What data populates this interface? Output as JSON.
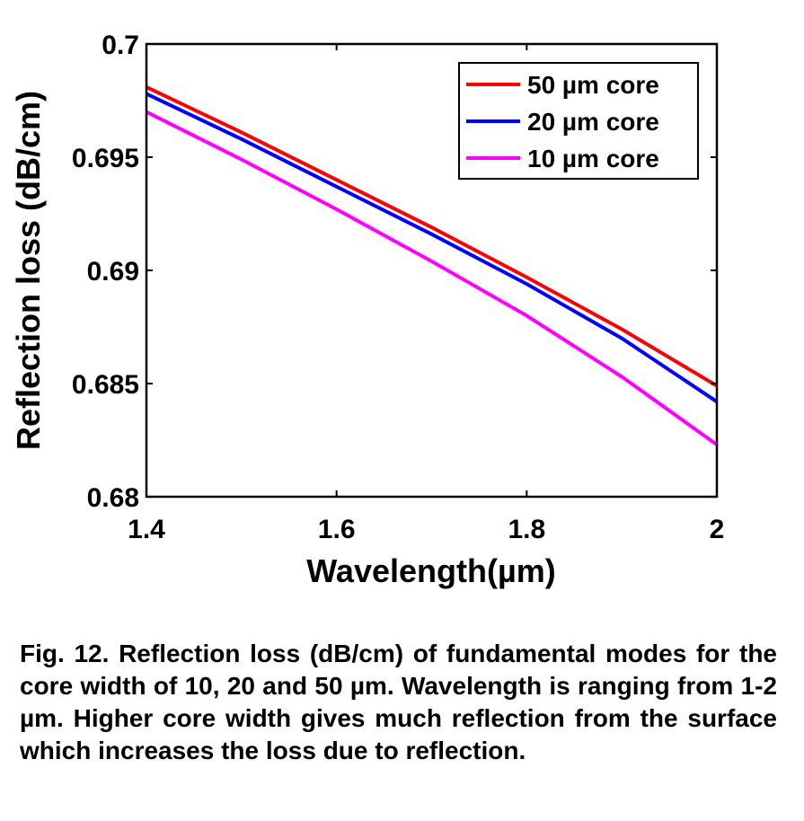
{
  "chart_data": {
    "type": "line",
    "xlabel": "Wavelength(µm)",
    "ylabel": "Reflection loss (dB/cm)",
    "xlim": [
      1.4,
      2.0
    ],
    "ylim": [
      0.68,
      0.7
    ],
    "xticks": [
      1.4,
      1.6,
      1.8,
      2.0
    ],
    "xtick_labels": [
      "1.4",
      "1.6",
      "1.8",
      "2"
    ],
    "yticks": [
      0.68,
      0.685,
      0.69,
      0.695,
      0.7
    ],
    "ytick_labels": [
      "0.68",
      "0.685",
      "0.69",
      "0.695",
      "0.7"
    ],
    "grid": false,
    "legend_position": "top-right",
    "x": [
      1.4,
      1.5,
      1.6,
      1.7,
      1.8,
      1.9,
      2.0
    ],
    "series": [
      {
        "name": "50 µm core",
        "color": "#ff0000",
        "values": [
          0.6981,
          0.6961,
          0.694,
          0.6919,
          0.6897,
          0.6874,
          0.6849
        ]
      },
      {
        "name": "20 µm core",
        "color": "#0000ff",
        "values": [
          0.6978,
          0.6958,
          0.6937,
          0.6916,
          0.6894,
          0.687,
          0.6842
        ]
      },
      {
        "name": "10 µm core",
        "color": "#ff00ff",
        "values": [
          0.697,
          0.6949,
          0.6927,
          0.6904,
          0.688,
          0.6853,
          0.6823
        ]
      }
    ]
  },
  "caption": "Fig. 12. Reflection loss (dB/cm) of fundamental modes for the core width of 10, 20 and 50 µm. Wavelength is ranging from 1-2 µm. Higher core width gives much reflection from the surface which increases the loss due to reflection."
}
